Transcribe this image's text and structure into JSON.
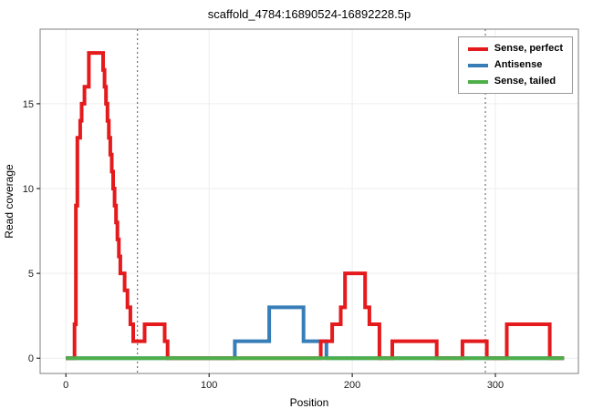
{
  "chart_data": {
    "type": "line",
    "line_style": "step",
    "title": "scaffold_4784:16890524-16892228.5p",
    "xlabel": "Position",
    "ylabel": "Read coverage",
    "xlim": [
      -18,
      358
    ],
    "ylim": [
      -0.9,
      19.4
    ],
    "xticks": [
      0,
      100,
      200,
      300
    ],
    "yticks": [
      0,
      5,
      10,
      15
    ],
    "vlines": [
      50,
      293
    ],
    "grid": "light",
    "legend_position": "top-right-inside",
    "draw_order": [
      1,
      0,
      2
    ],
    "series": [
      {
        "name": "Sense, perfect",
        "color": "#e41a1c",
        "step_points": [
          [
            0,
            0
          ],
          [
            6,
            2
          ],
          [
            7,
            9
          ],
          [
            8,
            13
          ],
          [
            10,
            14
          ],
          [
            11,
            15
          ],
          [
            13,
            16
          ],
          [
            16,
            18
          ],
          [
            26,
            17
          ],
          [
            27,
            16
          ],
          [
            28,
            15
          ],
          [
            29,
            14
          ],
          [
            30,
            13
          ],
          [
            31,
            12
          ],
          [
            32,
            11
          ],
          [
            33,
            10
          ],
          [
            34,
            9
          ],
          [
            35,
            8
          ],
          [
            36,
            7
          ],
          [
            37,
            6
          ],
          [
            38,
            5
          ],
          [
            41,
            4
          ],
          [
            43,
            3
          ],
          [
            45,
            2
          ],
          [
            47,
            1
          ],
          [
            55,
            2
          ],
          [
            69,
            1
          ],
          [
            71,
            0
          ],
          [
            176,
            0
          ],
          [
            178,
            1
          ],
          [
            186,
            2
          ],
          [
            192,
            3
          ],
          [
            195,
            5
          ],
          [
            209,
            3
          ],
          [
            212,
            2
          ],
          [
            219,
            0
          ],
          [
            228,
            1
          ],
          [
            259,
            0
          ],
          [
            277,
            1
          ],
          [
            294,
            0
          ],
          [
            308,
            2
          ],
          [
            338,
            0
          ],
          [
            348,
            0
          ]
        ]
      },
      {
        "name": "Antisense",
        "color": "#377eb8",
        "step_points": [
          [
            0,
            0
          ],
          [
            118,
            1
          ],
          [
            142,
            3
          ],
          [
            166,
            1
          ],
          [
            182,
            0
          ],
          [
            348,
            0
          ]
        ]
      },
      {
        "name": "Sense, tailed",
        "color": "#4daf4a",
        "step_points": [
          [
            0,
            0
          ],
          [
            348,
            0
          ]
        ]
      }
    ]
  }
}
